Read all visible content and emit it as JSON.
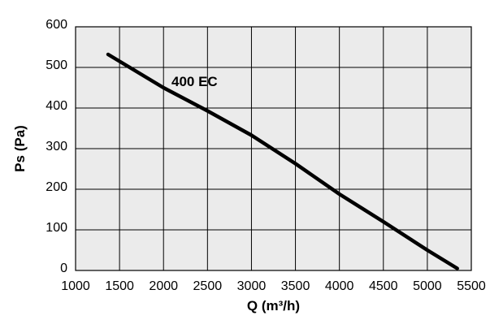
{
  "chart_data": {
    "type": "line",
    "title": "",
    "xlabel": "Q (m³/h)",
    "ylabel": "Ps (Pa)",
    "xlim": [
      1000,
      5500
    ],
    "ylim": [
      0,
      600
    ],
    "x_ticks": [
      "1000",
      "1500",
      "2000",
      "2500",
      "3000",
      "3500",
      "4000",
      "4500",
      "5000",
      "5500"
    ],
    "y_ticks": [
      "0",
      "100",
      "200",
      "300",
      "400",
      "500",
      "600"
    ],
    "grid": true,
    "plot_background": "#ebebeb",
    "line_color": "#000000",
    "series": [
      {
        "name": "400 EC",
        "x": [
          1370,
          2000,
          2500,
          3000,
          3500,
          4000,
          4500,
          5000,
          5340
        ],
        "y": [
          532,
          450,
          393,
          333,
          263,
          188,
          120,
          50,
          5
        ]
      }
    ]
  }
}
